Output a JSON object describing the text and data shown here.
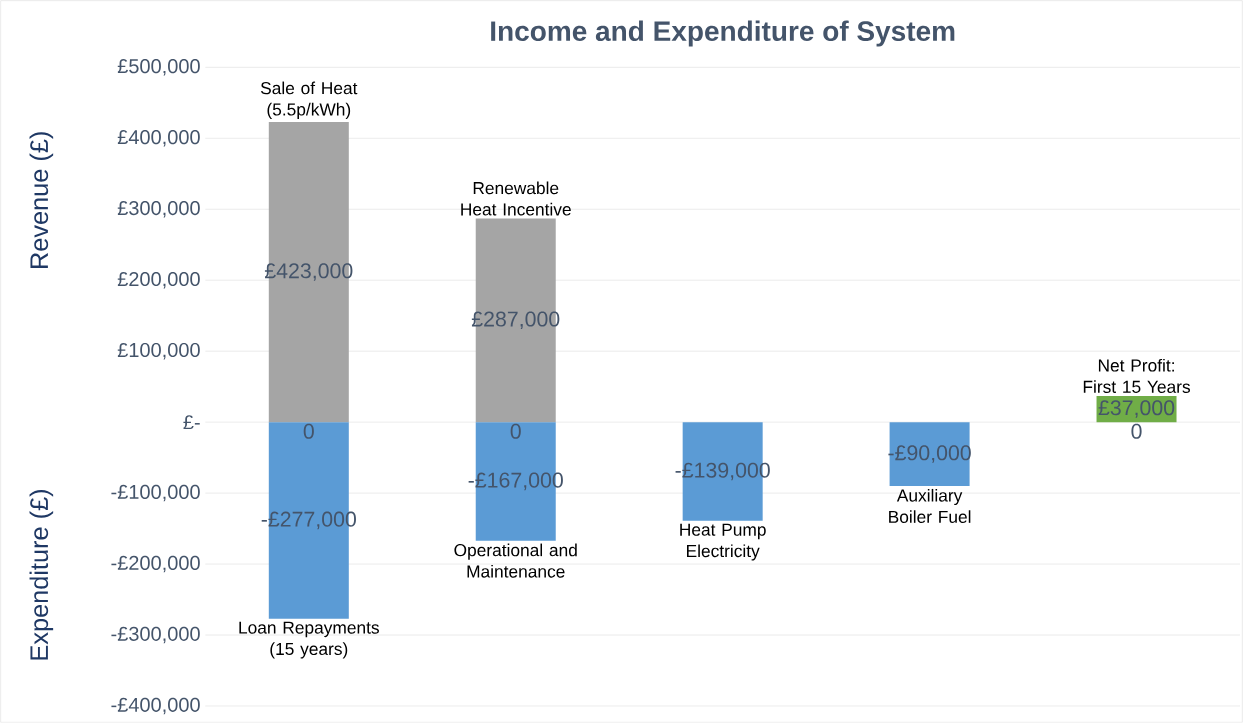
{
  "chart_data": {
    "type": "bar",
    "title": "Income and Expenditure of System",
    "ylabel": "Revenue (£)",
    "annotations": [
      "Expenditure (£)"
    ],
    "categories": [
      null,
      null,
      null,
      null,
      null
    ],
    "series": [
      {
        "name": "Sale of Heat (5.5p/kWh)",
        "color": "#a5a5a5",
        "values": [
          423000,
          null,
          null,
          null,
          null
        ],
        "value_labels": [
          "£423,000",
          null,
          null,
          null,
          null
        ]
      },
      {
        "name": "Renewable Heat Incentive",
        "color": "#a5a5a5",
        "values": [
          null,
          287000,
          null,
          null,
          null
        ],
        "value_labels": [
          null,
          "£287,000",
          null,
          null,
          null
        ]
      },
      {
        "name": "Loan Repayments (15 years)",
        "color": "#5b9bd5",
        "values": [
          -277000,
          null,
          null,
          null,
          null
        ],
        "value_labels": [
          "-£277,000",
          null,
          null,
          null,
          null
        ]
      },
      {
        "name": "Operational and Maintenance",
        "color": "#5b9bd5",
        "values": [
          null,
          -167000,
          null,
          null,
          null
        ],
        "value_labels": [
          null,
          "-£167,000",
          null,
          null,
          null
        ]
      },
      {
        "name": "Heat Pump Electricity",
        "color": "#5b9bd5",
        "values": [
          null,
          null,
          -139000,
          null,
          null
        ],
        "value_labels": [
          null,
          null,
          "-£139,000",
          null,
          null
        ]
      },
      {
        "name": "Auxiliary Boiler Fuel",
        "color": "#5b9bd5",
        "values": [
          null,
          null,
          null,
          -90000,
          null
        ],
        "value_labels": [
          null,
          null,
          null,
          "-£90,000",
          null
        ]
      },
      {
        "name": "Net Profit: First 15 Years",
        "color": "#70ad47",
        "values": [
          0,
          0,
          null,
          null,
          37000
        ],
        "value_labels": [
          "0",
          "0",
          null,
          null,
          "£37,000"
        ]
      },
      {
        "color": "#5b9bd5",
        "values": [
          null,
          null,
          null,
          null,
          0
        ],
        "value_labels": [
          null,
          null,
          null,
          null,
          "0"
        ]
      }
    ],
    "ylim": [
      -400000,
      500000
    ],
    "yticks": [
      {
        "value": 500000,
        "label": "£500,000"
      },
      {
        "value": 400000,
        "label": "£400,000"
      },
      {
        "value": 300000,
        "label": "£300,000"
      },
      {
        "value": 200000,
        "label": "£200,000"
      },
      {
        "value": 100000,
        "label": "£100,000"
      },
      {
        "value": 0,
        "label": "£-"
      },
      {
        "value": -100000,
        "label": "-£100,000"
      },
      {
        "value": -200000,
        "label": "-£200,000"
      },
      {
        "value": -300000,
        "label": "-£300,000"
      },
      {
        "value": -400000,
        "label": "-£400,000"
      }
    ],
    "grid": "y"
  }
}
